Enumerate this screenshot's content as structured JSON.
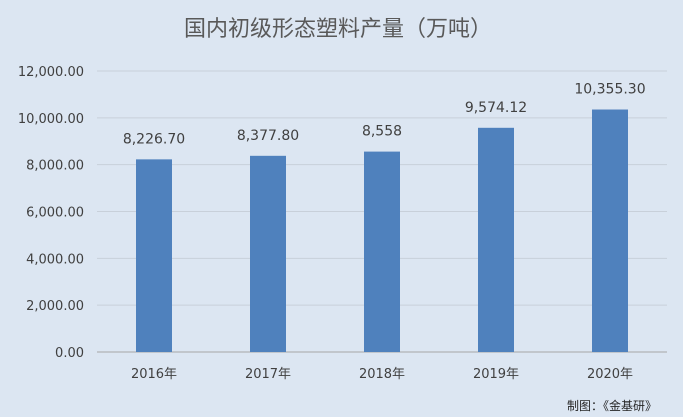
{
  "chart_data": {
    "type": "bar",
    "title": "国内初级形态塑料产量（万吨）",
    "categories": [
      "2016年",
      "2017年",
      "2018年",
      "2019年",
      "2020年"
    ],
    "values": [
      8226.7,
      8377.8,
      8558,
      9574.12,
      10355.3
    ],
    "data_labels": [
      "8,226.70",
      "8,377.80",
      "8,558",
      "9,574.12",
      "10,355.30"
    ],
    "ylim": [
      0,
      12000
    ],
    "y_ticks": [
      0,
      2000,
      4000,
      6000,
      8000,
      10000,
      12000
    ],
    "y_tick_labels": [
      "0.00",
      "2,000.00",
      "4,000.00",
      "6,000.00",
      "8,000.00",
      "10,000.00",
      "12,000.00"
    ],
    "grid": true,
    "legend": "none",
    "bar_color": "#4f81bd",
    "grid_color": "#c8d0da",
    "background_color": "#dce6f2"
  },
  "source_note": "制图：《金基研》"
}
